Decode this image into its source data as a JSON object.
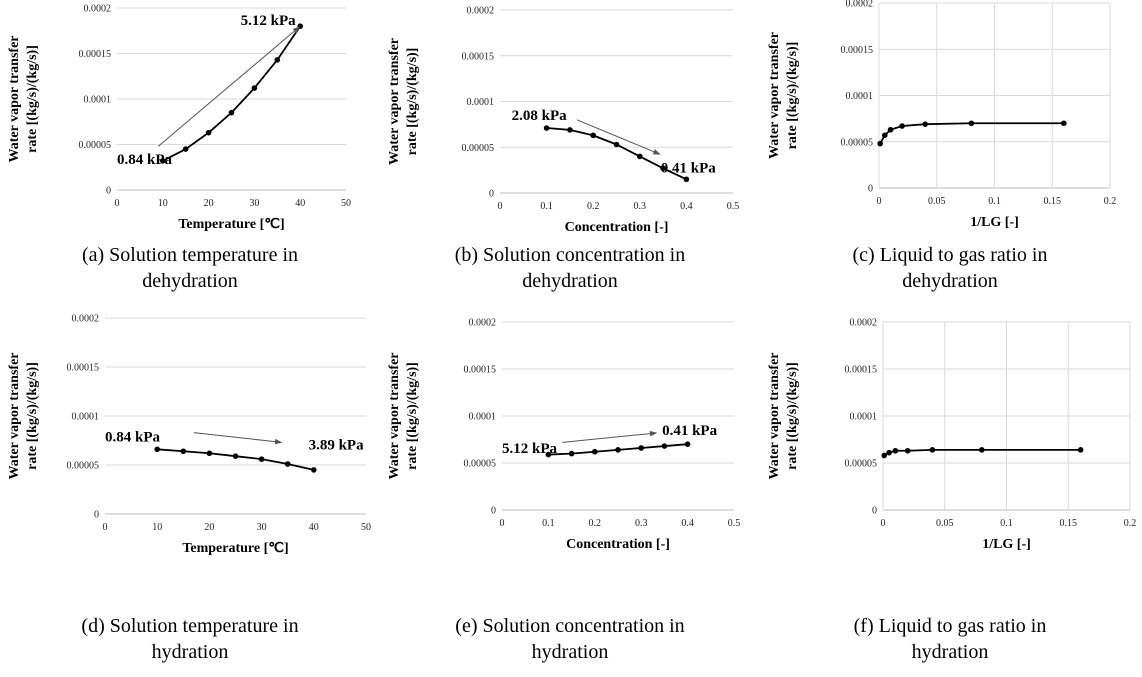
{
  "figure": {
    "colors": {
      "line": "#000000",
      "grid": "#d9d9d9",
      "arrow": "#555555",
      "axis": "#bfbfbf"
    },
    "ylabel_lines": [
      "Water vapor transfer",
      "rate [(kg/s)/(kg/s)]"
    ]
  },
  "chart_data": [
    {
      "id": "a",
      "type": "line",
      "caption_lines": [
        "(a) Solution temperature in",
        "dehydration"
      ],
      "xlabel": "Temperature [℃]",
      "xlim": [
        0,
        50
      ],
      "xticks": [
        "0",
        "10",
        "20",
        "30",
        "40",
        "50"
      ],
      "ylim": [
        0,
        0.0002
      ],
      "yticks": [
        "0",
        "0.00005",
        "0.0001",
        "0.00015",
        "0.0002"
      ],
      "grid": "horizontal",
      "series": [
        {
          "x": [
            10,
            15,
            20,
            25,
            30,
            35,
            40
          ],
          "y": [
            3.2e-05,
            4.5e-05,
            6.3e-05,
            8.5e-05,
            0.000112,
            0.000143,
            0.00018
          ]
        }
      ],
      "annotations": [
        {
          "text": "0.84 kPa",
          "x": 0,
          "y": 3.4e-05
        },
        {
          "text": "5.12 kPa",
          "x": 27,
          "y": 0.000187
        }
      ],
      "arrow": {
        "from": [
          9,
          4.8e-05
        ],
        "to": [
          40,
          0.00018
        ]
      }
    },
    {
      "id": "b",
      "type": "line",
      "caption_lines": [
        "(b) Solution concentration in",
        "dehydration"
      ],
      "xlabel": "Concentration [-]",
      "xlim": [
        0,
        0.5
      ],
      "xticks": [
        "0",
        "0.1",
        "0.2",
        "0.3",
        "0.4",
        "0.5"
      ],
      "ylim": [
        0,
        0.0002
      ],
      "yticks": [
        "0",
        "0.00005",
        "0.0001",
        "0.00015",
        "0.0002"
      ],
      "grid": "horizontal",
      "series": [
        {
          "x": [
            0.1,
            0.15,
            0.2,
            0.25,
            0.3,
            0.35,
            0.4
          ],
          "y": [
            7.1e-05,
            6.9e-05,
            6.3e-05,
            5.3e-05,
            4e-05,
            2.7e-05,
            1.5e-05
          ]
        }
      ],
      "annotations": [
        {
          "text": "2.08 kPa",
          "x": 0.025,
          "y": 8.5e-05
        },
        {
          "text": "0.41 kPa",
          "x": 0.345,
          "y": 2.8e-05
        }
      ],
      "arrow": {
        "from": [
          0.165,
          8e-05
        ],
        "to": [
          0.345,
          4.2e-05
        ]
      }
    },
    {
      "id": "c",
      "type": "line",
      "caption_lines": [
        "(c) Liquid to gas ratio in",
        "dehydration"
      ],
      "xlabel": "1/LG [-]",
      "xlim": [
        0,
        0.2
      ],
      "xticks": [
        "0",
        "0.05",
        "0.1",
        "0.15",
        "0.2"
      ],
      "ylim": [
        0,
        0.0002
      ],
      "yticks": [
        "0",
        "0.00005",
        "0.0001",
        "0.00015",
        "0.0002"
      ],
      "grid": "both",
      "series": [
        {
          "x": [
            0.001,
            0.005,
            0.01,
            0.02,
            0.04,
            0.08,
            0.16
          ],
          "y": [
            4.8e-05,
            5.7e-05,
            6.3e-05,
            6.7e-05,
            6.9e-05,
            7e-05,
            7e-05
          ]
        }
      ],
      "annotations": []
    },
    {
      "id": "d",
      "type": "line",
      "caption_lines": [
        "(d) Solution temperature in",
        "hydration"
      ],
      "xlabel": "Temperature [℃]",
      "xlim": [
        0,
        50
      ],
      "xticks": [
        "0",
        "10",
        "20",
        "30",
        "40",
        "50"
      ],
      "ylim": [
        0,
        0.0002
      ],
      "yticks": [
        "0",
        "0.00005",
        "0.0001",
        "0.00015",
        "0.0002"
      ],
      "grid": "horizontal",
      "series": [
        {
          "x": [
            10,
            15,
            20,
            25,
            30,
            35,
            40
          ],
          "y": [
            6.6e-05,
            6.4e-05,
            6.2e-05,
            5.9e-05,
            5.6e-05,
            5.1e-05,
            4.5e-05
          ]
        }
      ],
      "annotations": [
        {
          "text": "0.84 kPa",
          "x": 0,
          "y": 7.9e-05
        },
        {
          "text": "3.89 kPa",
          "x": 39,
          "y": 7.1e-05
        }
      ],
      "arrow": {
        "from": [
          17,
          8.3e-05
        ],
        "to": [
          34,
          7.3e-05
        ]
      }
    },
    {
      "id": "e",
      "type": "line",
      "caption_lines": [
        "(e) Solution concentration in",
        "hydration"
      ],
      "xlabel": "Concentration [-]",
      "xlim": [
        0,
        0.5
      ],
      "xticks": [
        "0",
        "0.1",
        "0.2",
        "0.3",
        "0.4",
        "0.5"
      ],
      "ylim": [
        0,
        0.0002
      ],
      "yticks": [
        "0",
        "0.00005",
        "0.0001",
        "0.00015",
        "0.0002"
      ],
      "grid": "horizontal",
      "series": [
        {
          "x": [
            0.1,
            0.15,
            0.2,
            0.25,
            0.3,
            0.35,
            0.4
          ],
          "y": [
            5.9e-05,
            6e-05,
            6.2e-05,
            6.4e-05,
            6.6e-05,
            6.8e-05,
            7e-05
          ]
        }
      ],
      "annotations": [
        {
          "text": "5.12 kPa",
          "x": 0.0,
          "y": 6.6e-05
        },
        {
          "text": "0.41 kPa",
          "x": 0.345,
          "y": 8.5e-05
        }
      ],
      "arrow": {
        "from": [
          0.13,
          7.2e-05
        ],
        "to": [
          0.335,
          8.2e-05
        ]
      }
    },
    {
      "id": "f",
      "type": "line",
      "caption_lines": [
        "(f) Liquid to gas ratio in",
        "hydration"
      ],
      "xlabel": "1/LG [-]",
      "xlim": [
        0,
        0.2
      ],
      "xticks": [
        "0",
        "0.05",
        "0.1",
        "0.15",
        "0.2"
      ],
      "ylim": [
        0,
        0.0002
      ],
      "yticks": [
        "0",
        "0.00005",
        "0.0001",
        "0.00015",
        "0.0002"
      ],
      "grid": "both",
      "series": [
        {
          "x": [
            0.001,
            0.005,
            0.01,
            0.02,
            0.04,
            0.08,
            0.16
          ],
          "y": [
            5.8e-05,
            6.1e-05,
            6.3e-05,
            6.3e-05,
            6.4e-05,
            6.4e-05,
            6.4e-05
          ]
        }
      ],
      "annotations": []
    }
  ]
}
